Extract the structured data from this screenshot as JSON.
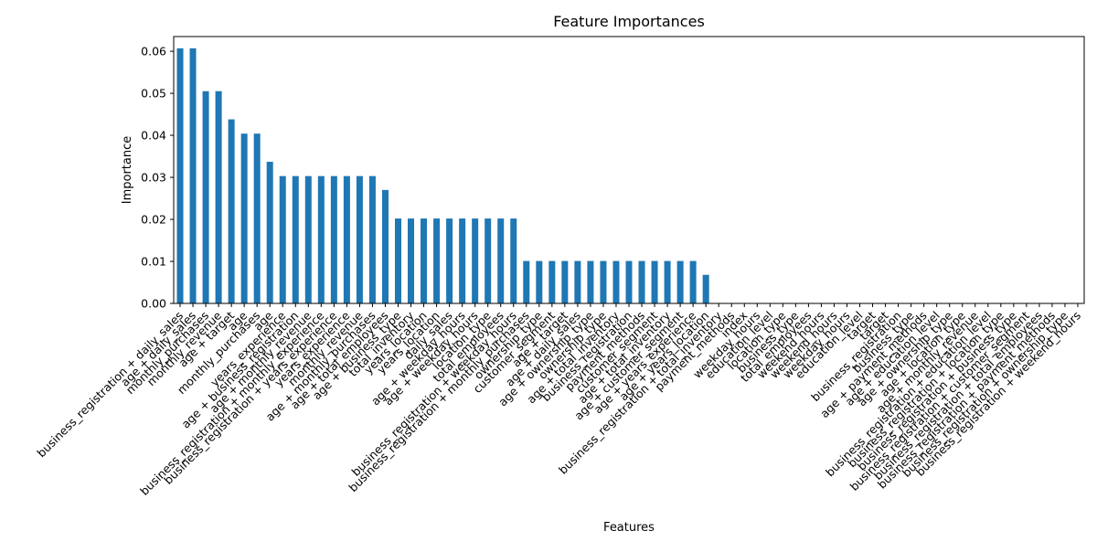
{
  "chart_data": {
    "type": "bar",
    "title": "Feature Importances",
    "xlabel": "Features",
    "ylabel": "Importance",
    "ylim": [
      0,
      0.0635
    ],
    "yticks": [
      "0.00",
      "0.01",
      "0.02",
      "0.03",
      "0.04",
      "0.05",
      "0.06"
    ],
    "ytick_values": [
      0,
      0.01,
      0.02,
      0.03,
      0.04,
      0.05,
      0.06
    ],
    "grid": false,
    "bar_color": "#1f77b4",
    "categories": [
      "business_registration + daily_sales",
      "age + daily_sales",
      "monthly_purchases",
      "monthly_revenue",
      "age + target",
      "age",
      "monthly_purchases",
      "age",
      "years_experience",
      "age + business_registration",
      "age + monthly_revenue",
      "business_registration + monthly_experience",
      "business_registration + years_experience",
      "years_experience",
      "monthly_revenue",
      "age + monthly_purchases",
      "age + total_employees",
      "age + business_type",
      "total_inventory",
      "years_location",
      "years_location",
      "daily_sales",
      "age + weekday_hours",
      "age + weekday_hours",
      "location_type",
      "total_employees",
      "business_registration + weekday_hours",
      "business_registration + monthly_purchases",
      "ownership_type",
      "customer_segment",
      "age + target",
      "age + daily_sales",
      "age + ownership_type",
      "ownership_type",
      "age + total_inventory",
      "business_registration",
      "payment_methods",
      "customer_segment",
      "age + total_inventory",
      "age + customer_segment",
      "age + years_experience",
      "age + years_location",
      "business_registration + total_inventory",
      "payment_methods",
      "index",
      "weekday_hours",
      "education_level",
      "location_type",
      "business_type",
      "total_employees",
      "weekend_hours",
      "weekend_hours",
      "weekday_hours",
      "education_level",
      "target",
      "target",
      "business_registration",
      "business_type",
      "age + payment_methods",
      "age + education_level",
      "age + ownership_type",
      "age + location_type",
      "age + monthly_revenue",
      "business_registration + education_level",
      "business_registration + location_type",
      "business_registration + business_type",
      "business_registration + customer_segment",
      "business_registration + total_employees",
      "business_registration + payment_methods",
      "business_registration + ownership_type",
      "business_registration + weekend_hours"
    ],
    "values": [
      0.0607,
      0.0607,
      0.0505,
      0.0505,
      0.0438,
      0.0404,
      0.0404,
      0.0337,
      0.0303,
      0.0303,
      0.0303,
      0.0303,
      0.0303,
      0.0303,
      0.0303,
      0.0303,
      0.027,
      0.0202,
      0.0202,
      0.0202,
      0.0202,
      0.0202,
      0.0202,
      0.0202,
      0.0202,
      0.0202,
      0.0202,
      0.0101,
      0.0101,
      0.0101,
      0.0101,
      0.0101,
      0.0101,
      0.0101,
      0.0101,
      0.0101,
      0.0101,
      0.0101,
      0.0101,
      0.0101,
      0.0101,
      0.0068,
      0,
      0,
      0,
      0,
      0,
      0,
      0,
      0,
      0,
      0,
      0,
      0,
      0,
      0,
      0,
      0,
      0,
      0,
      0,
      0,
      0,
      0,
      0,
      0,
      0,
      0,
      0,
      0,
      0
    ]
  }
}
